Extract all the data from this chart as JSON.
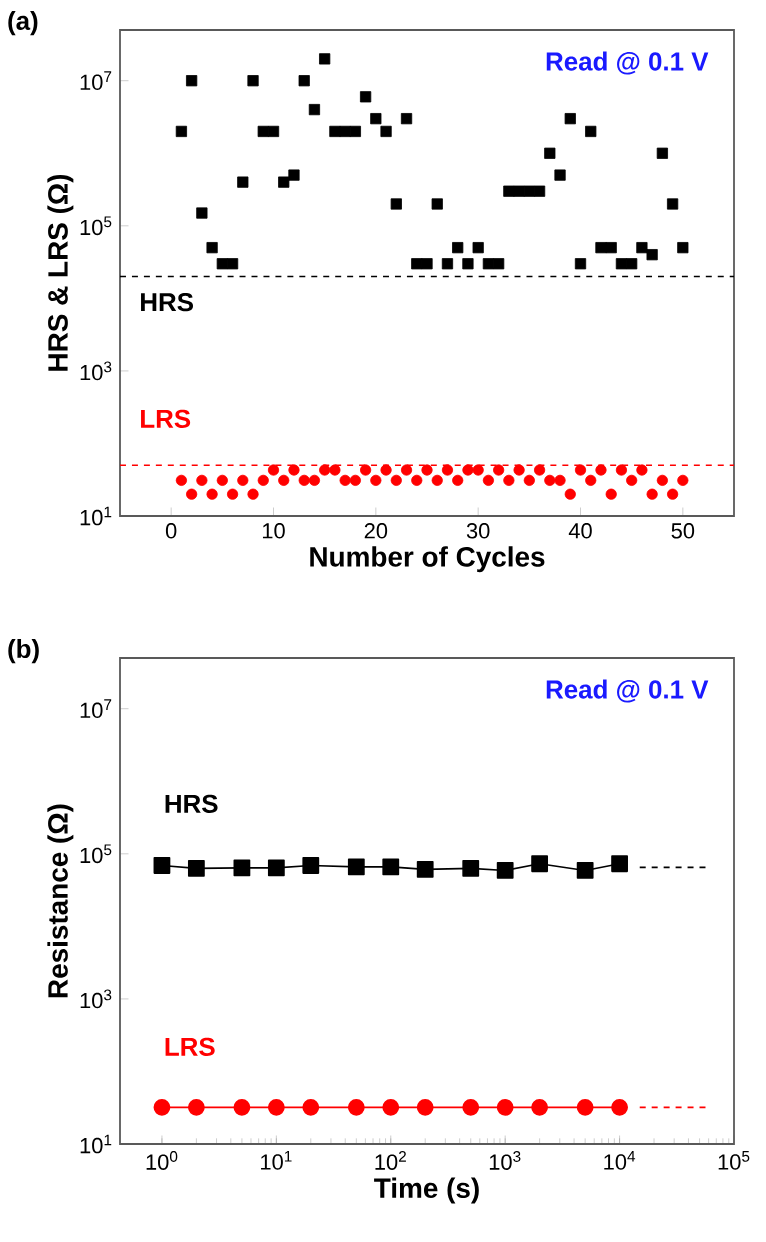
{
  "chart_data": [
    {
      "type": "scatter",
      "title": "(a)",
      "xlabel": "Number of Cycles",
      "ylabel": "HRS & LRS (Ω)",
      "log": "y",
      "xlim": [
        -5,
        55
      ],
      "xticks": [
        0,
        10,
        20,
        30,
        40,
        50
      ],
      "ylim": [
        10,
        50000000
      ],
      "yticks": [
        {
          "value": 10,
          "label": "10$^{1}$"
        },
        {
          "value": 1000,
          "label": "10$^{3}$"
        },
        {
          "value": 100000,
          "label": "10$^{5}$"
        },
        {
          "value": 10000000,
          "label": "10$^{7}$"
        }
      ],
      "x": [
        1,
        2,
        3,
        4,
        5,
        6,
        7,
        8,
        9,
        10,
        11,
        12,
        13,
        14,
        15,
        16,
        17,
        18,
        19,
        20,
        21,
        22,
        23,
        24,
        25,
        26,
        27,
        28,
        29,
        30,
        31,
        32,
        33,
        34,
        35,
        36,
        37,
        38,
        39,
        40,
        41,
        42,
        43,
        44,
        45,
        46,
        47,
        48,
        49,
        50
      ],
      "series": [
        {
          "name": "HRS",
          "color": "#000000",
          "marker": "square",
          "values": [
            2000000,
            10000000,
            150000,
            50000,
            30000,
            30000,
            400000,
            10000000,
            2000000,
            2000000,
            400000,
            500000,
            10000000,
            4000000,
            20000000,
            2000000,
            2000000,
            2000000,
            6000000,
            3000000,
            2000000,
            200000,
            3000000,
            30000,
            30000,
            200000,
            30000,
            50000,
            30000,
            50000,
            30000,
            30000,
            300000,
            300000,
            300000,
            300000,
            1000000,
            500000,
            3000000,
            30000,
            2000000,
            50000,
            50000,
            30000,
            30000,
            50000,
            40000,
            1000000,
            200000,
            50000
          ]
        },
        {
          "name": "LRS",
          "color": "#ff0000",
          "marker": "circle",
          "values": [
            31,
            20,
            31,
            20,
            31,
            20,
            31,
            20,
            31,
            43,
            31,
            43,
            31,
            31,
            43,
            43,
            31,
            31,
            43,
            31,
            43,
            31,
            43,
            31,
            43,
            31,
            43,
            31,
            43,
            43,
            31,
            43,
            31,
            43,
            31,
            43,
            31,
            31,
            20,
            43,
            31,
            43,
            20,
            43,
            31,
            43,
            20,
            31,
            20,
            31
          ]
        }
      ],
      "ref_lines": [
        {
          "axis": "y",
          "value": 20000,
          "color": "#000000",
          "line_style": "dashed"
        },
        {
          "axis": "y",
          "value": 50,
          "color": "#ff0000",
          "line_style": "dashed"
        }
      ],
      "annotations": [
        "Read @ 0.1 V"
      ]
    },
    {
      "type": "line",
      "title": "(b)",
      "xlabel": "Time (s)",
      "ylabel": "Resistance (Ω)",
      "log": "xy",
      "xlim": [
        0.43,
        100000
      ],
      "xticks": [
        {
          "value": 1,
          "label": "10$^{0}$"
        },
        {
          "value": 10,
          "label": "10$^{1}$"
        },
        {
          "value": 100,
          "label": "10$^{2}$"
        },
        {
          "value": 1000,
          "label": "10$^{3}$"
        },
        {
          "value": 10000,
          "label": "10$^{4}$"
        },
        {
          "value": 100000,
          "label": "10$^{5}$"
        }
      ],
      "ylim": [
        10,
        50000000
      ],
      "yticks": [
        {
          "value": 10,
          "label": "10$^{1}$"
        },
        {
          "value": 1000,
          "label": "10$^{3}$"
        },
        {
          "value": 100000,
          "label": "10$^{5}$"
        },
        {
          "value": 10000000,
          "label": "10$^{7}$"
        }
      ],
      "series": [
        {
          "name": "HRS",
          "color": "#000000",
          "marker": "square",
          "x": [
            1,
            2,
            5,
            10,
            20,
            50,
            100,
            200,
            500,
            1000,
            2000,
            5000,
            10000
          ],
          "values": [
            69000,
            63000,
            64000,
            64000,
            69000,
            66000,
            66000,
            61000,
            63000,
            59000,
            73000,
            59000,
            73000
          ]
        },
        {
          "name": "LRS",
          "color": "#ff0000",
          "marker": "circle",
          "x": [
            1,
            2,
            5,
            10,
            20,
            50,
            100,
            200,
            500,
            1000,
            2000,
            5000,
            10000
          ],
          "values": [
            32,
            32,
            32,
            32,
            32,
            32,
            32,
            32,
            32,
            32,
            32,
            32,
            32
          ]
        },
        {
          "color": "#000000",
          "marker": "none",
          "line_style": "dashed",
          "x": [
            15000,
            60000
          ],
          "values": [
            65000,
            65000
          ]
        },
        {
          "color": "#ff0000",
          "marker": "none",
          "line_style": "dashed",
          "x": [
            15000,
            60000
          ],
          "values": [
            32,
            32
          ]
        }
      ],
      "annotations": [
        "Read @ 0.1 V"
      ]
    }
  ]
}
